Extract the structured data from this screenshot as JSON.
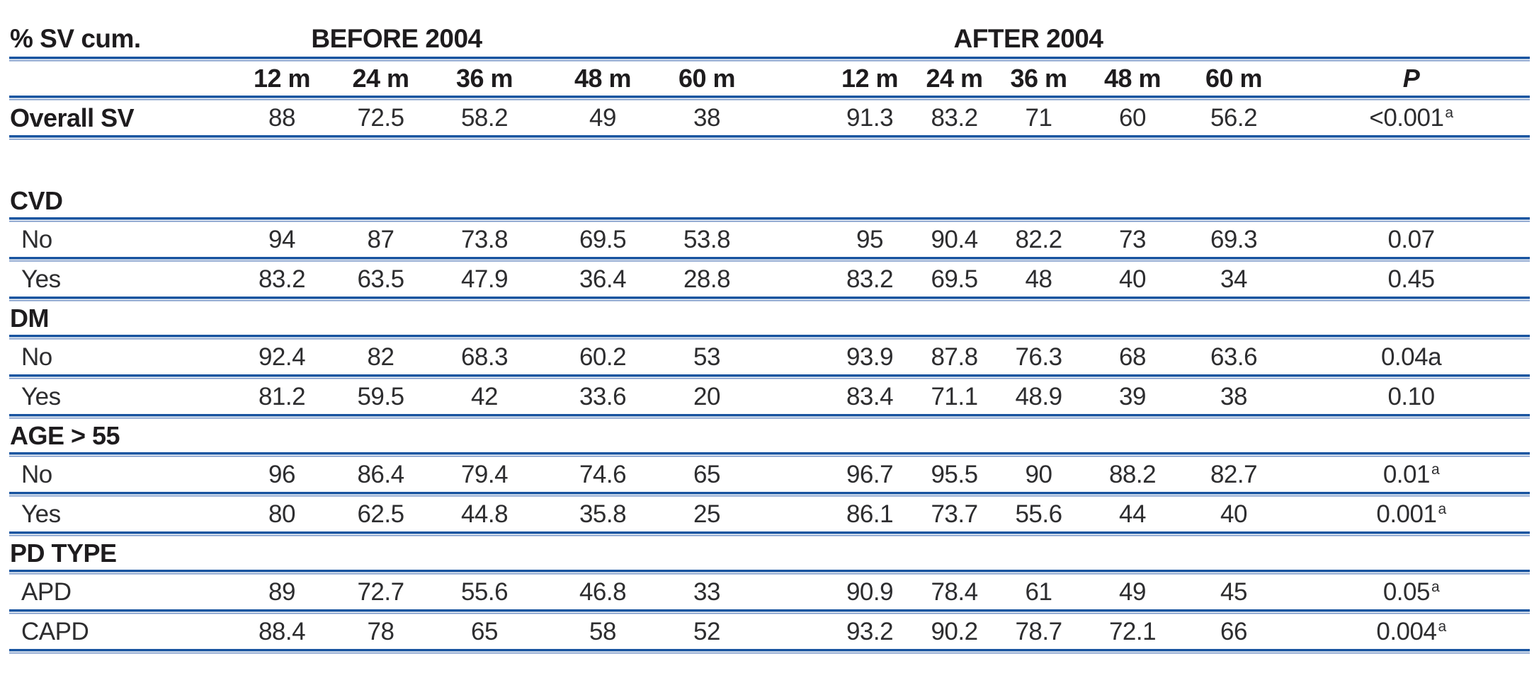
{
  "table": {
    "corner_label": "% SV cum.",
    "group_headers": [
      {
        "label": "BEFORE 2004"
      },
      {
        "label": "AFTER 2004"
      }
    ],
    "col_headers_before": [
      "12 m",
      "24 m",
      "36 m",
      "48 m",
      "60 m"
    ],
    "col_headers_after": [
      "12 m",
      "24 m",
      "36 m",
      "48 m",
      "60 m"
    ],
    "p_header": "P",
    "rows": [
      {
        "type": "data-bold",
        "label": "Overall SV",
        "before": [
          "88",
          "72.5",
          "58.2",
          "49",
          "38"
        ],
        "after": [
          "91.3",
          "83.2",
          "71",
          "60",
          "56.2"
        ],
        "p": "<0.001",
        "p_sup": "a"
      },
      {
        "type": "spacer"
      },
      {
        "type": "section",
        "label": "CVD"
      },
      {
        "type": "data",
        "label": "No",
        "before": [
          "94",
          "87",
          "73.8",
          "69.5",
          "53.8"
        ],
        "after": [
          "95",
          "90.4",
          "82.2",
          "73",
          "69.3"
        ],
        "p": "0.07",
        "p_sup": ""
      },
      {
        "type": "data",
        "label": "Yes",
        "before": [
          "83.2",
          "63.5",
          "47.9",
          "36.4",
          "28.8"
        ],
        "after": [
          "83.2",
          "69.5",
          "48",
          "40",
          "34"
        ],
        "p": "0.45",
        "p_sup": ""
      },
      {
        "type": "section",
        "label": "DM"
      },
      {
        "type": "data",
        "label": "No",
        "before": [
          "92.4",
          "82",
          "68.3",
          "60.2",
          "53"
        ],
        "after": [
          "93.9",
          "87.8",
          "76.3",
          "68",
          "63.6"
        ],
        "p": "0.04a",
        "p_sup": ""
      },
      {
        "type": "data",
        "label": "Yes",
        "before": [
          "81.2",
          "59.5",
          "42",
          "33.6",
          "20"
        ],
        "after": [
          "83.4",
          "71.1",
          "48.9",
          "39",
          "38"
        ],
        "p": "0.10",
        "p_sup": ""
      },
      {
        "type": "section",
        "label": "AGE > 55"
      },
      {
        "type": "data",
        "label": "No",
        "before": [
          "96",
          "86.4",
          "79.4",
          "74.6",
          "65"
        ],
        "after": [
          "96.7",
          "95.5",
          "90",
          "88.2",
          "82.7"
        ],
        "p": "0.01",
        "p_sup": "a"
      },
      {
        "type": "data",
        "label": "Yes",
        "before": [
          "80",
          "62.5",
          "44.8",
          "35.8",
          "25"
        ],
        "after": [
          "86.1",
          "73.7",
          "55.6",
          "44",
          "40"
        ],
        "p": "0.001",
        "p_sup": "a"
      },
      {
        "type": "section",
        "label": "PD TYPE"
      },
      {
        "type": "data",
        "label": "APD",
        "before": [
          "89",
          "72.7",
          "55.6",
          "46.8",
          "33"
        ],
        "after": [
          "90.9",
          "78.4",
          "61",
          "49",
          "45"
        ],
        "p": "0.05",
        "p_sup": "a"
      },
      {
        "type": "data",
        "label": "CAPD",
        "before": [
          "88.4",
          "78",
          "65",
          "58",
          "52"
        ],
        "after": [
          "93.2",
          "90.2",
          "78.7",
          "72.1",
          "66"
        ],
        "p": "0.004",
        "p_sup": "a"
      }
    ],
    "colors": {
      "rule_blue": "#1a55a0",
      "rule_blue_light": "#7493c5",
      "text_dark": "#1e1c1e",
      "text_number": "#2d2d2f",
      "background": "#ffffff"
    }
  }
}
